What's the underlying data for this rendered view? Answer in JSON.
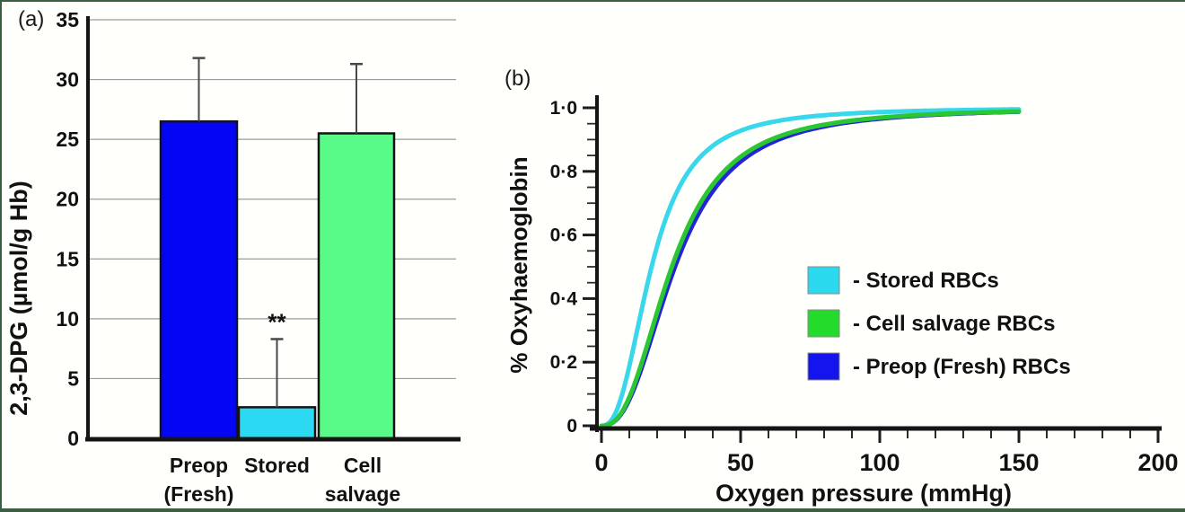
{
  "figure": {
    "background": "#fffffb",
    "border_color": "#3a5f43"
  },
  "panel_a": {
    "panel_label": "(a)"
  },
  "panel_b": {
    "panel_label": "(b)"
  },
  "chart_data": [
    {
      "type": "bar",
      "title": "",
      "ylabel": "2,3-DPG (µmol/g Hb)",
      "ylim": [
        0,
        35
      ],
      "ytick_step": 5,
      "y_tick_labels": [
        "0",
        "5",
        "10",
        "15",
        "20",
        "25",
        "30",
        "35"
      ],
      "grid": true,
      "categories": [
        "Preop (Fresh)",
        "Stored",
        "Cell salvage"
      ],
      "category_lines": [
        [
          "Preop",
          "(Fresh)"
        ],
        [
          "Stored"
        ],
        [
          "Cell",
          "salvage"
        ]
      ],
      "values": [
        26.5,
        2.6,
        25.5
      ],
      "error_plus": [
        5.3,
        5.7,
        5.8
      ],
      "significance": [
        "",
        "**",
        ""
      ],
      "bar_colors": [
        "#0505f5",
        "#2bd9f2",
        "#58fb87"
      ]
    },
    {
      "type": "line",
      "title": "",
      "xlabel": "Oxygen pressure (mmHg)",
      "ylabel": "% Oxyhaemoglobin",
      "xlim": [
        0,
        200
      ],
      "ylim": [
        0,
        1.0
      ],
      "x_ticks": [
        0,
        50,
        100,
        150,
        200
      ],
      "x_tick_labels": [
        "0",
        "50",
        "100",
        "150",
        "200"
      ],
      "x_minor_step": 10,
      "y_ticks": [
        0,
        0.2,
        0.4,
        0.6,
        0.8,
        1.0
      ],
      "y_tick_labels": [
        "0",
        "0·2",
        "0·4",
        "0·6",
        "0·8",
        "1·0"
      ],
      "y_minor_step": 0.05,
      "x_data_max_mmHg": 150,
      "grid": false,
      "series": [
        {
          "name": "Stored RBCs",
          "color": "#38d7ec",
          "p50_mmHg": 18.0,
          "hill_n": 2.5,
          "saturation_at_150": 0.995
        },
        {
          "name": "Preop (Fresh) RBCs",
          "color": "#2525d8",
          "p50_mmHg": 26.5,
          "hill_n": 2.5,
          "saturation_at_150": 0.987
        },
        {
          "name": "Cell salvage RBCs",
          "color": "#2bc732",
          "p50_mmHg": 25.3,
          "hill_n": 2.5,
          "saturation_at_150": 0.988
        }
      ],
      "legend": {
        "position": "center-right",
        "items": [
          {
            "label": "- Stored RBCs",
            "color": "#2bd9ef"
          },
          {
            "label": "- Cell salvage RBCs",
            "color": "#22db2b"
          },
          {
            "label": "- Preop (Fresh) RBCs",
            "color": "#1414ef"
          }
        ]
      }
    }
  ]
}
